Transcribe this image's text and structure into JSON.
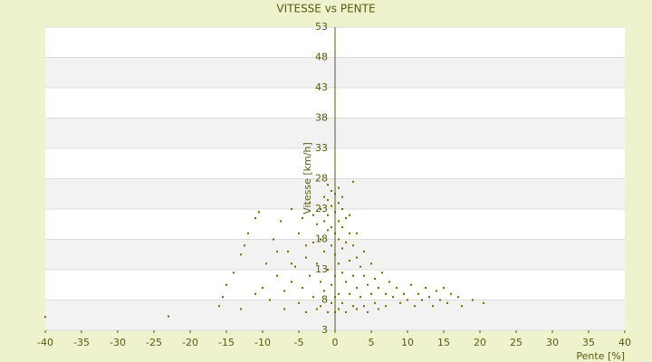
{
  "chart_data": {
    "type": "scatter",
    "title": "VITESSE vs PENTE",
    "x_label": "Pente [%]",
    "y_label": "Vitesse [km/h]",
    "xlim": [
      -40,
      40
    ],
    "xticks": [
      -40,
      -35,
      -30,
      -25,
      -20,
      -15,
      -10,
      -5,
      0,
      5,
      10,
      15,
      20,
      25,
      30,
      35,
      40
    ],
    "ylim": [
      3,
      53
    ],
    "yticks": [
      3,
      8,
      13,
      18,
      23,
      28,
      33,
      38,
      43,
      48,
      53
    ],
    "grid": true,
    "series": [
      {
        "color": "#6b6b00",
        "x": [
          -40,
          -23,
          -16,
          -15.5,
          -15,
          -14,
          -13,
          -12.5,
          -12,
          -11,
          -10.5,
          -10,
          -9.5,
          -9,
          -8.5,
          -8,
          -7.5,
          -7,
          -7,
          -6.5,
          -6,
          -6,
          -5.5,
          -5,
          -5,
          -4.5,
          -4.5,
          -4,
          -4,
          -3.5,
          -3.5,
          -3,
          -3,
          -2.5,
          -2.5,
          -2.5,
          -2,
          -2,
          -2,
          -2,
          -1.5,
          -1.5,
          -1.5,
          -1.5,
          -1,
          -1,
          -1,
          -1,
          -1,
          -0.5,
          -0.5,
          -0.5,
          -0.5,
          -0.5,
          -0.5,
          0,
          0,
          0,
          0,
          0,
          0,
          0,
          0.5,
          0.5,
          0.5,
          0.5,
          0.5,
          0.5,
          1,
          1,
          1,
          1,
          1,
          1.5,
          1.5,
          1.5,
          1.5,
          2,
          2,
          2,
          2.5,
          2.5,
          2.5,
          2.5,
          3,
          3,
          3,
          3.5,
          3.5,
          4,
          4,
          4.5,
          4.5,
          5,
          5,
          5.5,
          5.5,
          6,
          6,
          6.5,
          7,
          7,
          7.5,
          8,
          8.5,
          9,
          9.5,
          10,
          10.5,
          11,
          11.5,
          12,
          12.5,
          13,
          13.5,
          14,
          14.5,
          15,
          15.5,
          16,
          17,
          17.5,
          19,
          20.5,
          -8,
          -11,
          -13,
          -6,
          -3,
          -1,
          0.5,
          -4,
          2,
          1,
          3,
          4
        ],
        "values": [
          5.2,
          5.3,
          7,
          8.5,
          10.5,
          12.5,
          15.5,
          17,
          19,
          21.5,
          22.5,
          10,
          14,
          8,
          18,
          12,
          21,
          6.5,
          9.5,
          16,
          23,
          11,
          13.5,
          7.5,
          19,
          21.5,
          10,
          15,
          6,
          24,
          12,
          17.5,
          8.5,
          20.5,
          14,
          6.5,
          23,
          18,
          11,
          7,
          25,
          21,
          16,
          9.5,
          24.5,
          22,
          19.5,
          13,
          6,
          26,
          23.5,
          20,
          17,
          10.5,
          7.5,
          25.5,
          22.5,
          19,
          15.5,
          12,
          8.5,
          6,
          24,
          21,
          18,
          14,
          9,
          6.5,
          23,
          20,
          16.5,
          12.5,
          7.5,
          21.5,
          17.5,
          11,
          6,
          19,
          14.5,
          9,
          27.5,
          17,
          12,
          7,
          15,
          10,
          6.5,
          13.5,
          8.5,
          12,
          7,
          10.5,
          6,
          14,
          9,
          11.5,
          7.5,
          10,
          6.5,
          12.5,
          9,
          7,
          11,
          8.5,
          10,
          7.5,
          9,
          8,
          10.5,
          7,
          9,
          8,
          10,
          8.5,
          7,
          9.5,
          8,
          10,
          7.5,
          9,
          8.5,
          7,
          8,
          7.5,
          16,
          9,
          6.5,
          14,
          22,
          27,
          26.5,
          17,
          22,
          25,
          19,
          16
        ]
      }
    ]
  }
}
